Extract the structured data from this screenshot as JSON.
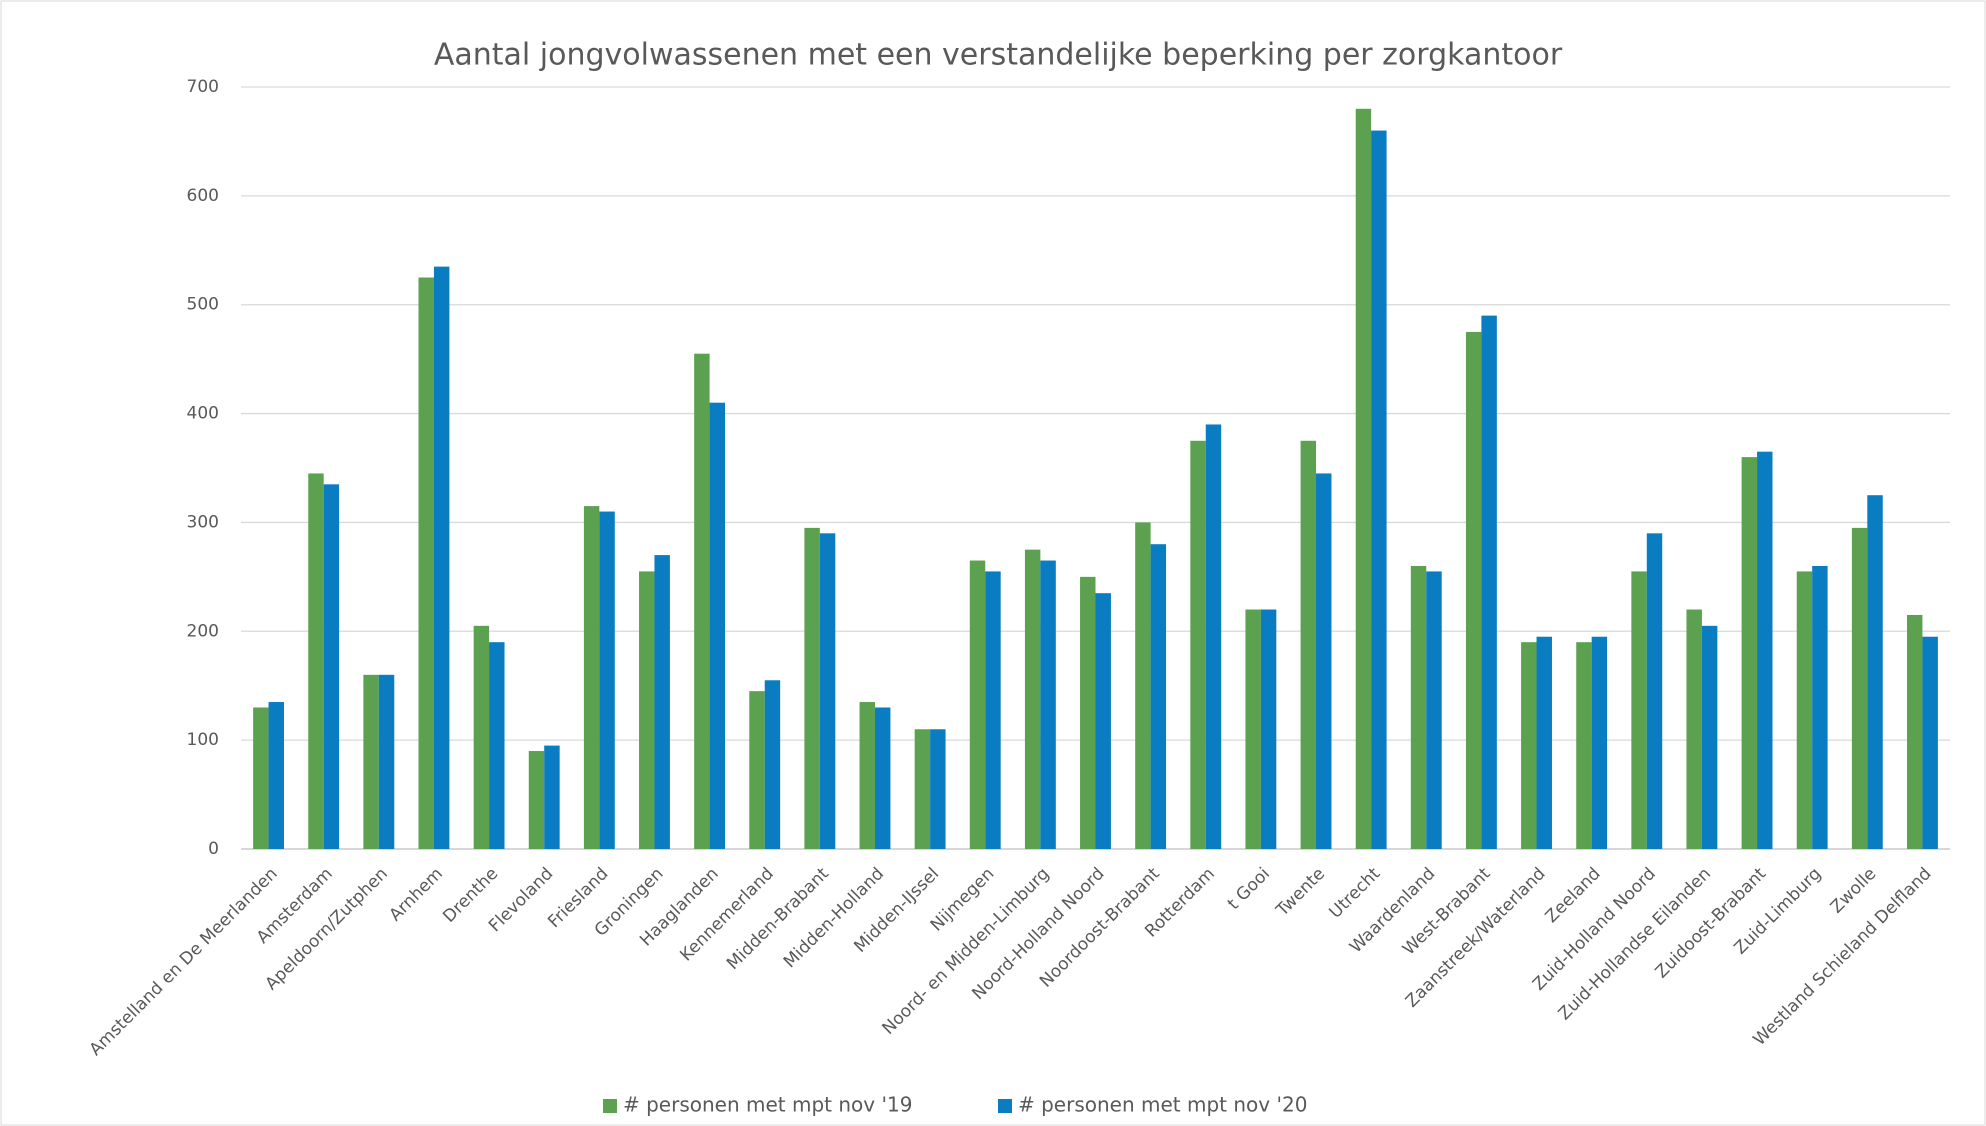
{
  "chart_data": {
    "type": "bar",
    "title": "Aantal jongvolwassenen met een verstandelijke beperking per zorgkantoor",
    "categories": [
      "Amstelland en De Meerlanden",
      "Amsterdam",
      "Apeldoorn/Zutphen",
      "Arnhem",
      "Drenthe",
      "Flevoland",
      "Friesland",
      "Groningen",
      "Haaglanden",
      "Kennemerland",
      "Midden-Brabant",
      "Midden-Holland",
      "Midden-IJssel",
      "Nijmegen",
      "Noord- en Midden-Limburg",
      "Noord-Holland Noord",
      "Noordoost-Brabant",
      "Rotterdam",
      "t Gooi",
      "Twente",
      "Utrecht",
      "Waardenland",
      "West-Brabant",
      "Zaanstreek/Waterland",
      "Zeeland",
      "Zuid-Holland Noord",
      "Zuid-Hollandse Eilanden",
      "Zuidoost-Brabant",
      "Zuid-Limburg",
      "Zwolle",
      "Westland Schieland Delfland"
    ],
    "series": [
      {
        "name": "# personen met mpt nov '19",
        "color": "#5ba150",
        "values": [
          130,
          345,
          160,
          525,
          205,
          90,
          315,
          255,
          455,
          145,
          295,
          135,
          110,
          265,
          275,
          250,
          300,
          375,
          220,
          375,
          680,
          260,
          475,
          190,
          190,
          255,
          220,
          360,
          255,
          295,
          215
        ]
      },
      {
        "name": "# personen met mpt nov '20",
        "color": "#0a7cc1",
        "values": [
          135,
          335,
          160,
          535,
          190,
          95,
          310,
          270,
          410,
          155,
          290,
          130,
          110,
          255,
          265,
          235,
          280,
          390,
          220,
          345,
          660,
          255,
          490,
          195,
          195,
          290,
          205,
          365,
          260,
          325,
          195
        ]
      }
    ],
    "ylim": [
      0,
      700
    ],
    "yticks": [
      0,
      100,
      200,
      300,
      400,
      500,
      600,
      700
    ],
    "grid": true,
    "legend": "bottom"
  }
}
